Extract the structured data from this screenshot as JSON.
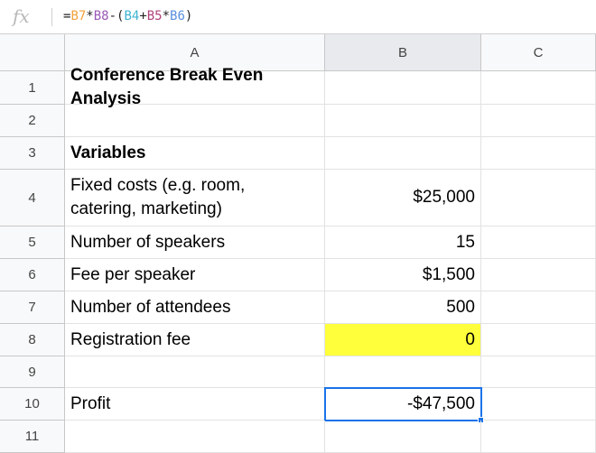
{
  "formula_bar": {
    "icon": "fx-icon",
    "label": "fx",
    "formula_parts": [
      {
        "text": "=",
        "color": "#222222"
      },
      {
        "text": "B7",
        "color": "#f2a33a"
      },
      {
        "text": "*",
        "color": "#222222"
      },
      {
        "text": "B8",
        "color": "#9b59b6"
      },
      {
        "text": "-(",
        "color": "#222222"
      },
      {
        "text": "B4",
        "color": "#3fb4d2"
      },
      {
        "text": "+",
        "color": "#222222"
      },
      {
        "text": "B5",
        "color": "#b0407a"
      },
      {
        "text": "*",
        "color": "#222222"
      },
      {
        "text": "B6",
        "color": "#5b8fe0"
      },
      {
        "text": ")",
        "color": "#222222"
      }
    ]
  },
  "columns": [
    "A",
    "B",
    "C"
  ],
  "selected_column": "B",
  "rows": [
    {
      "num": "1",
      "a": "Conference Break Even Analysis",
      "b": "",
      "bold": true
    },
    {
      "num": "2",
      "a": "",
      "b": ""
    },
    {
      "num": "3",
      "a": "Variables",
      "b": "",
      "bold": true
    },
    {
      "num": "4",
      "a": "Fixed costs (e.g. room,\ncatering, marketing)",
      "b": "$25,000"
    },
    {
      "num": "5",
      "a": "Number of speakers",
      "b": "15"
    },
    {
      "num": "6",
      "a": "Fee per speaker",
      "b": "$1,500"
    },
    {
      "num": "7",
      "a": "Number of attendees",
      "b": "500"
    },
    {
      "num": "8",
      "a": "Registration fee",
      "b": "0",
      "highlight": "#ffff3b"
    },
    {
      "num": "9",
      "a": "",
      "b": ""
    },
    {
      "num": "10",
      "a": "Profit",
      "b": "-$47,500",
      "selected": true
    },
    {
      "num": "11",
      "a": "",
      "b": ""
    }
  ],
  "selection_color": "#1a73e8"
}
